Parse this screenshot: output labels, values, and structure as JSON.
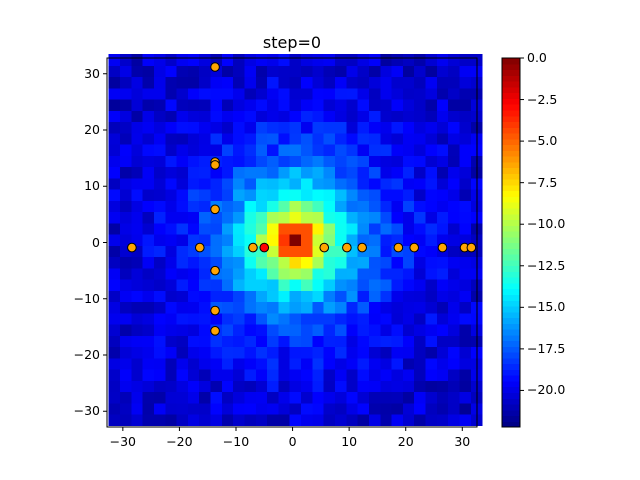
{
  "chart_data": {
    "type": "heatmap",
    "title": "step=0",
    "xlabel": "",
    "ylabel": "",
    "xlim": [
      -32.8,
      32.6
    ],
    "ylim": [
      -32.8,
      32.8
    ],
    "x_ticks": [
      -30,
      -20,
      -10,
      0,
      10,
      20,
      30
    ],
    "x_tick_labels": [
      "−30",
      "−20",
      "−10",
      "0",
      "10",
      "20",
      "30"
    ],
    "y_ticks": [
      -30,
      -20,
      -10,
      0,
      10,
      20,
      30
    ],
    "y_tick_labels": [
      "−30",
      "−20",
      "−10",
      "0",
      "10",
      "20",
      "30"
    ],
    "grid": false,
    "colormap": "jet",
    "heatmap": {
      "grid_size": 33,
      "cell_size": 2,
      "peak_location": [
        0.5,
        0.5
      ],
      "peak_value": 0.0,
      "background_value": -20.5,
      "description": "Radially symmetric log-magnitude field peaking at the origin (~0) and decaying to ~-20 to -22 at edges, with cross-shaped checkerboard texture"
    },
    "colorbar": {
      "range": [
        -22.2,
        0.0
      ],
      "ticks": [
        0.0,
        -2.5,
        -5.0,
        -7.5,
        -10.0,
        -12.5,
        -15.0,
        -17.5,
        -20.0
      ],
      "tick_labels": [
        "0.0",
        "−2.5",
        "−5.0",
        "−7.5",
        "−10.0",
        "−12.5",
        "−15.0",
        "−17.5",
        "−20.0"
      ]
    },
    "series": [
      {
        "name": "points",
        "type": "scatter",
        "color": "#ffa500",
        "edgecolor": "#000000",
        "points": [
          {
            "x": -28.4,
            "y": -0.9
          },
          {
            "x": -16.4,
            "y": -0.9
          },
          {
            "x": -7.0,
            "y": -0.9
          },
          {
            "x": 5.6,
            "y": -0.9
          },
          {
            "x": 9.6,
            "y": -0.9
          },
          {
            "x": 12.3,
            "y": -0.9
          },
          {
            "x": 18.7,
            "y": -0.9
          },
          {
            "x": 21.5,
            "y": -0.9
          },
          {
            "x": 26.5,
            "y": -0.9
          },
          {
            "x": 30.4,
            "y": -0.9
          },
          {
            "x": 31.6,
            "y": -0.9
          },
          {
            "x": -13.7,
            "y": 31.2
          },
          {
            "x": -13.7,
            "y": 14.3
          },
          {
            "x": -13.7,
            "y": 13.8
          },
          {
            "x": -13.7,
            "y": 5.9
          },
          {
            "x": -13.7,
            "y": -5.0
          },
          {
            "x": -13.7,
            "y": -12.1
          },
          {
            "x": -13.7,
            "y": -15.7
          }
        ]
      },
      {
        "name": "highlighted",
        "type": "scatter",
        "color": "#ff0000",
        "edgecolor": "#000000",
        "points": [
          {
            "x": -5.0,
            "y": -0.9
          }
        ]
      }
    ]
  }
}
